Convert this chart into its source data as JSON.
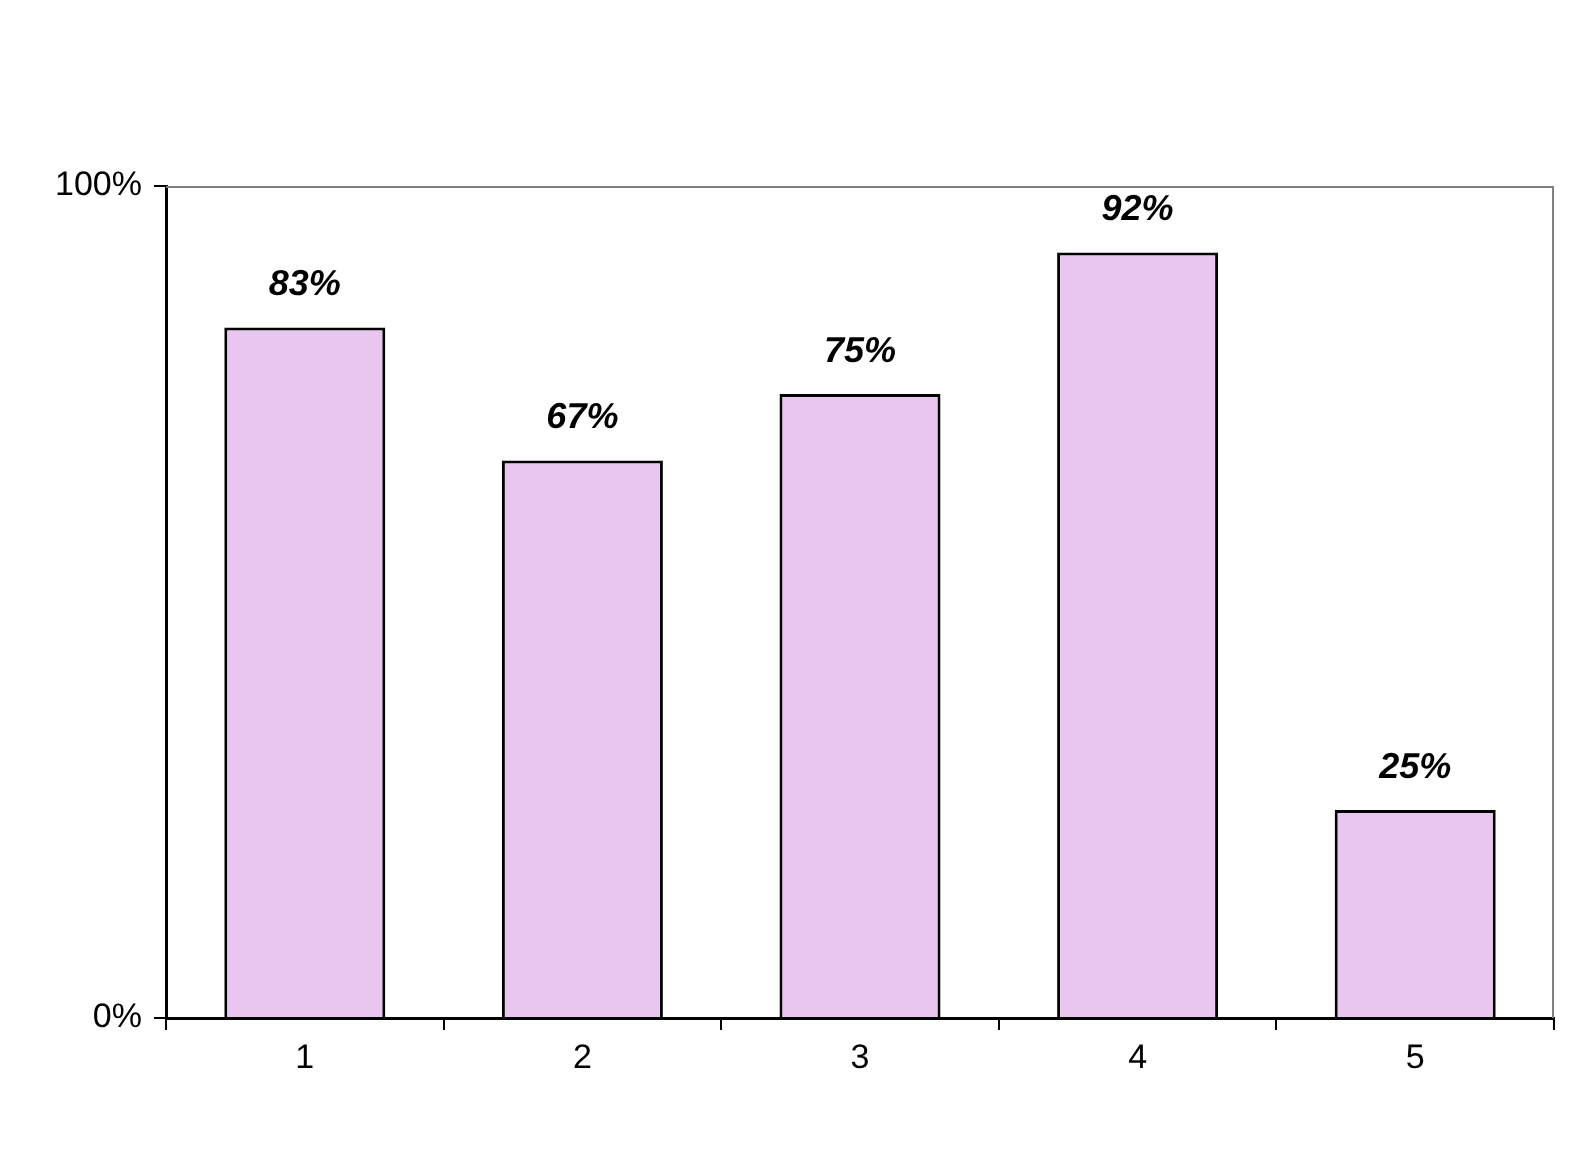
{
  "chart_data": {
    "type": "bar",
    "categories": [
      "1",
      "2",
      "3",
      "4",
      "5"
    ],
    "values": [
      83,
      67,
      75,
      92,
      25
    ],
    "color": "#e8c6f0",
    "value_labels": [
      "83%",
      "67%",
      "75%",
      "92%",
      "25%"
    ],
    "ylim": [
      0,
      100
    ],
    "yticks": [
      {
        "value": 0,
        "label": "0%"
      },
      {
        "value": 100,
        "label": "100%"
      }
    ],
    "grid": false,
    "legend": false
  }
}
